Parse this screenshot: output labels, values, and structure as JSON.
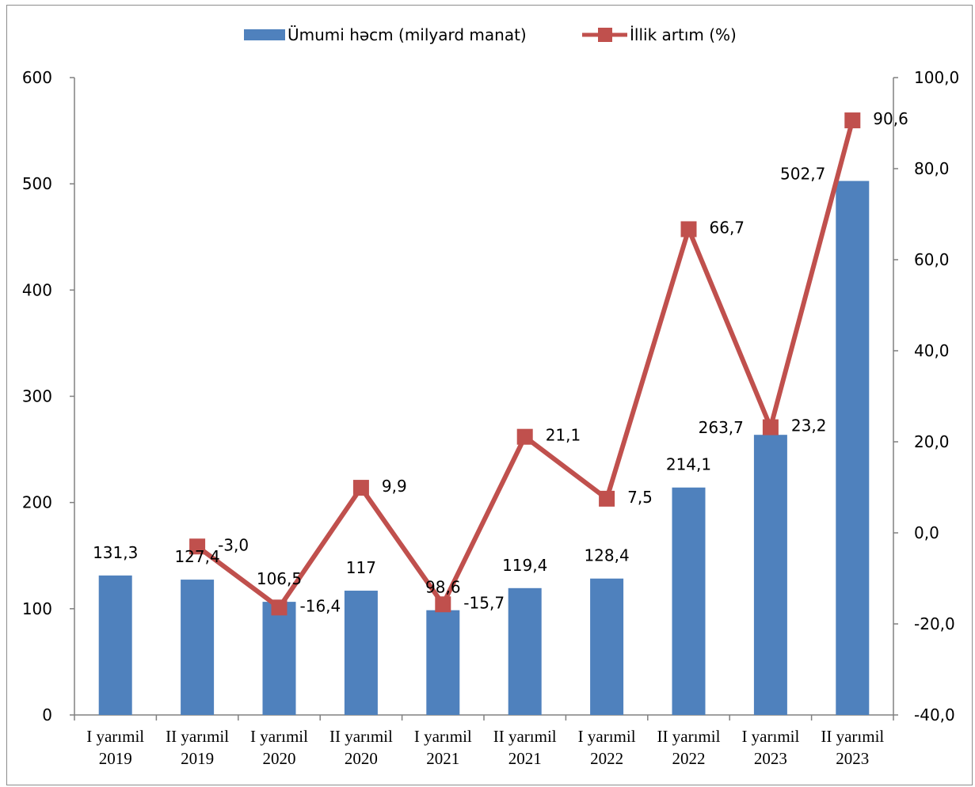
{
  "chart_data": {
    "type": "bar",
    "categories": [
      [
        "I yarımil",
        "2019"
      ],
      [
        "II yarımil",
        "2019"
      ],
      [
        "I yarımil",
        "2020"
      ],
      [
        "II yarımil",
        "2020"
      ],
      [
        "I yarımil",
        "2021"
      ],
      [
        "II yarımil",
        "2021"
      ],
      [
        "I yarımil",
        "2022"
      ],
      [
        "II yarımil",
        "2022"
      ],
      [
        "I yarımil",
        "2023"
      ],
      [
        "II yarımil",
        "2023"
      ]
    ],
    "series": [
      {
        "name": "Ümumi həcm (milyard manat)",
        "type": "bar",
        "axis": "left",
        "color": "#4f81bd",
        "values": [
          131.3,
          127.4,
          106.5,
          117,
          98.6,
          119.4,
          128.4,
          214.1,
          263.7,
          502.7
        ],
        "labels": [
          "131,3",
          "127,4",
          "106,5",
          "117",
          "98,6",
          "119,4",
          "128,4",
          "214,1",
          "263,7",
          "502,7"
        ]
      },
      {
        "name": "İllik artım (%)",
        "type": "line",
        "axis": "right",
        "color": "#c0504d",
        "values": [
          null,
          -3.0,
          -16.4,
          9.9,
          -15.7,
          21.1,
          7.5,
          66.7,
          23.2,
          90.6
        ],
        "labels": [
          "",
          "-3,0",
          "-16,4",
          "9,9",
          "-15,7",
          "21,1",
          "7,5",
          "66,7",
          "23,2",
          "90,6"
        ]
      }
    ],
    "y_left": {
      "min": 0,
      "max": 600,
      "step": 100,
      "ticks": [
        "0",
        "100",
        "200",
        "300",
        "400",
        "500",
        "600"
      ]
    },
    "y_right": {
      "min": -40,
      "max": 100,
      "step": 20,
      "ticks": [
        "-40,0",
        "-20,0",
        "0,0",
        "20,0",
        "40,0",
        "60,0",
        "80,0",
        "100,0"
      ]
    },
    "legend": "top",
    "grid": false
  }
}
